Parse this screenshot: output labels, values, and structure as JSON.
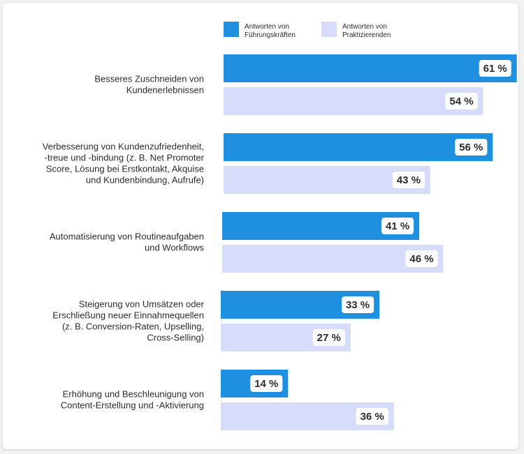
{
  "colors": {
    "executives": "#1f8fe0",
    "practitioners": "#d6dcfa",
    "label_box": "#ffffff",
    "text": "#2c2c2c"
  },
  "chart_data": {
    "type": "bar",
    "orientation": "horizontal",
    "legend_position": "top",
    "grid": false,
    "xlim": [
      0,
      65
    ],
    "categories": [
      [
        "Besseres Zuschneiden von",
        "Kundenerlebnissen"
      ],
      [
        "Verbesserung von Kundenzufriedenheit,",
        "-treue und -bindung (z. B. Net Promoter",
        "Score, Lösung bei Erstkontakt, Akquise",
        "und Kundenbindung, Aufrufe)"
      ],
      [
        "Automatisierung von Routineaufgaben",
        "und Workflows"
      ],
      [
        "Steigerung von Umsätzen oder",
        "Erschließung neuer Einnahmequellen",
        "(z. B. Conversion-Raten, Upselling,",
        "Cross-Selling)"
      ],
      [
        "Erhöhung und Beschleunigung von",
        "Content-Erstellung und -Aktivierung"
      ]
    ],
    "series": [
      {
        "name": [
          "Antworten von",
          "Führungskräften"
        ],
        "values": [
          61,
          56,
          41,
          33,
          14
        ],
        "labels": [
          "61 %",
          "56 %",
          "41 %",
          "33 %",
          "14 %"
        ]
      },
      {
        "name": [
          "Antworten von",
          "Praktizierenden"
        ],
        "values": [
          54,
          43,
          46,
          27,
          36
        ],
        "labels": [
          "54 %",
          "43 %",
          "46 %",
          "27 %",
          "36 %"
        ]
      }
    ]
  }
}
